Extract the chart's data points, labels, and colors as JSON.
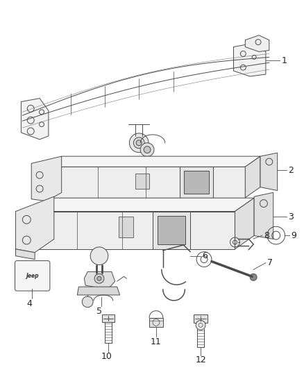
{
  "bg_color": "#ffffff",
  "line_color": "#4a4a4a",
  "fig_width": 4.38,
  "fig_height": 5.33,
  "dpi": 100
}
